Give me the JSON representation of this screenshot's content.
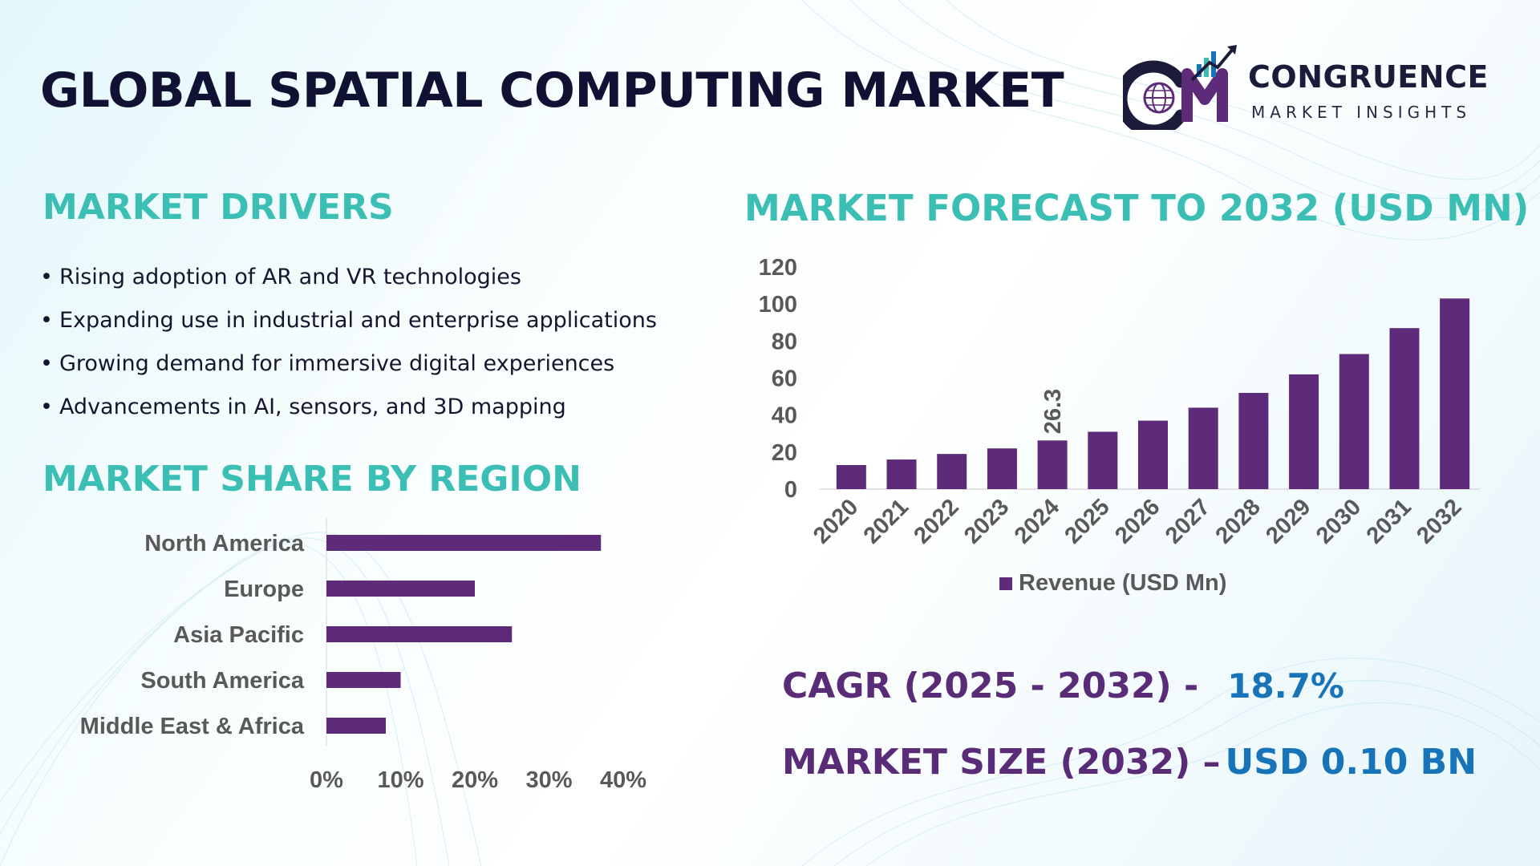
{
  "title": "GLOBAL SPATIAL COMPUTING MARKET",
  "logo": {
    "name": "CONGRUENCE",
    "tagline": "MARKET INSIGHTS",
    "monogram": "CM",
    "icon": "globe-icon"
  },
  "drivers": {
    "title": "MARKET DRIVERS",
    "bullet": "•",
    "items": [
      "Rising adoption of AR and VR technologies",
      "Expanding use in industrial and enterprise applications",
      "Growing demand for immersive digital experiences",
      "Advancements in AI, sensors, and 3D mapping"
    ]
  },
  "region": {
    "title": "MARKET SHARE BY REGION"
  },
  "forecast": {
    "title": "MARKET FORECAST TO 2032 (USD MN)"
  },
  "stats": {
    "cagr_label": "CAGR (2025 - 2032) -",
    "cagr_value": "18.7%",
    "size_label": "MARKET SIZE (2032) –",
    "size_value": "USD 0.10 BN"
  },
  "colors": {
    "bar": "#5e2b7a",
    "heading": "#3bbfb5",
    "title": "#111233",
    "stat_label": "#5a2c77",
    "stat_value": "#1774b8",
    "axis_text": "#595959"
  },
  "chart_data": [
    {
      "type": "bar",
      "orientation": "horizontal",
      "title": "MARKET SHARE BY REGION",
      "categories": [
        "North America",
        "Europe",
        "Asia Pacific",
        "South America",
        "Middle East & Africa"
      ],
      "values": [
        37,
        20,
        25,
        10,
        8
      ],
      "unit": "%",
      "xlim": [
        0,
        40
      ],
      "xticks": [
        0,
        10,
        20,
        30,
        40
      ],
      "xtick_labels": [
        "0%",
        "10%",
        "20%",
        "30%",
        "40%"
      ]
    },
    {
      "type": "bar",
      "orientation": "vertical",
      "title": "MARKET FORECAST TO 2032 (USD MN)",
      "categories": [
        "2020",
        "2021",
        "2022",
        "2023",
        "2024",
        "2025",
        "2026",
        "2027",
        "2028",
        "2029",
        "2030",
        "2031",
        "2032"
      ],
      "series": [
        {
          "name": "Revenue (USD Mn)",
          "values": [
            13,
            16,
            19,
            22,
            26.3,
            31,
            37,
            44,
            52,
            62,
            73,
            87,
            103
          ]
        }
      ],
      "data_labels": [
        {
          "category": "2024",
          "text": "26.3"
        }
      ],
      "ylim": [
        0,
        120
      ],
      "yticks": [
        0,
        20,
        40,
        60,
        80,
        100,
        120
      ],
      "legend": "bottom"
    }
  ]
}
